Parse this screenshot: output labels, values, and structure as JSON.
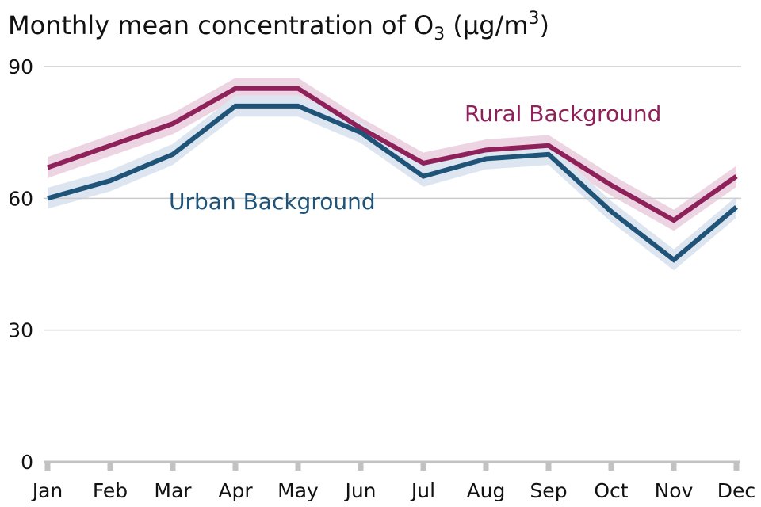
{
  "title": {
    "prefix": "Monthly mean concentration of O",
    "sub": "3",
    "mid": " (µg/m",
    "sup": "3",
    "suffix": ")"
  },
  "chart_data": {
    "type": "line",
    "title": "Monthly mean concentration of O3 (µg/m3)",
    "categories": [
      "Jan",
      "Feb",
      "Mar",
      "Apr",
      "May",
      "Jun",
      "Jul",
      "Aug",
      "Sep",
      "Oct",
      "Nov",
      "Dec"
    ],
    "series": [
      {
        "name": "Rural Background",
        "color": "#8e2159",
        "band_color": "#ecd4e2",
        "band_halfwidth": 2.4,
        "values": [
          67,
          72,
          77,
          85,
          85,
          76,
          68,
          71,
          72,
          63,
          55,
          65
        ]
      },
      {
        "name": "Urban Background",
        "color": "#1f5478",
        "band_color": "#dde6f0",
        "band_halfwidth": 2.4,
        "values": [
          60,
          64,
          70,
          81,
          81,
          75,
          65,
          69,
          70,
          57,
          46,
          58
        ]
      }
    ],
    "xlabel": "",
    "ylabel": "",
    "yticks": [
      0,
      30,
      60,
      90
    ],
    "ylim": [
      0,
      90
    ],
    "grid": "horizontal",
    "legend_position": "inline-annotations"
  },
  "colors": {
    "grid": "#cccccc",
    "axis": "#c2c2c2",
    "tick": "#c2c2c2",
    "text": "#111111",
    "title": "#111111"
  }
}
